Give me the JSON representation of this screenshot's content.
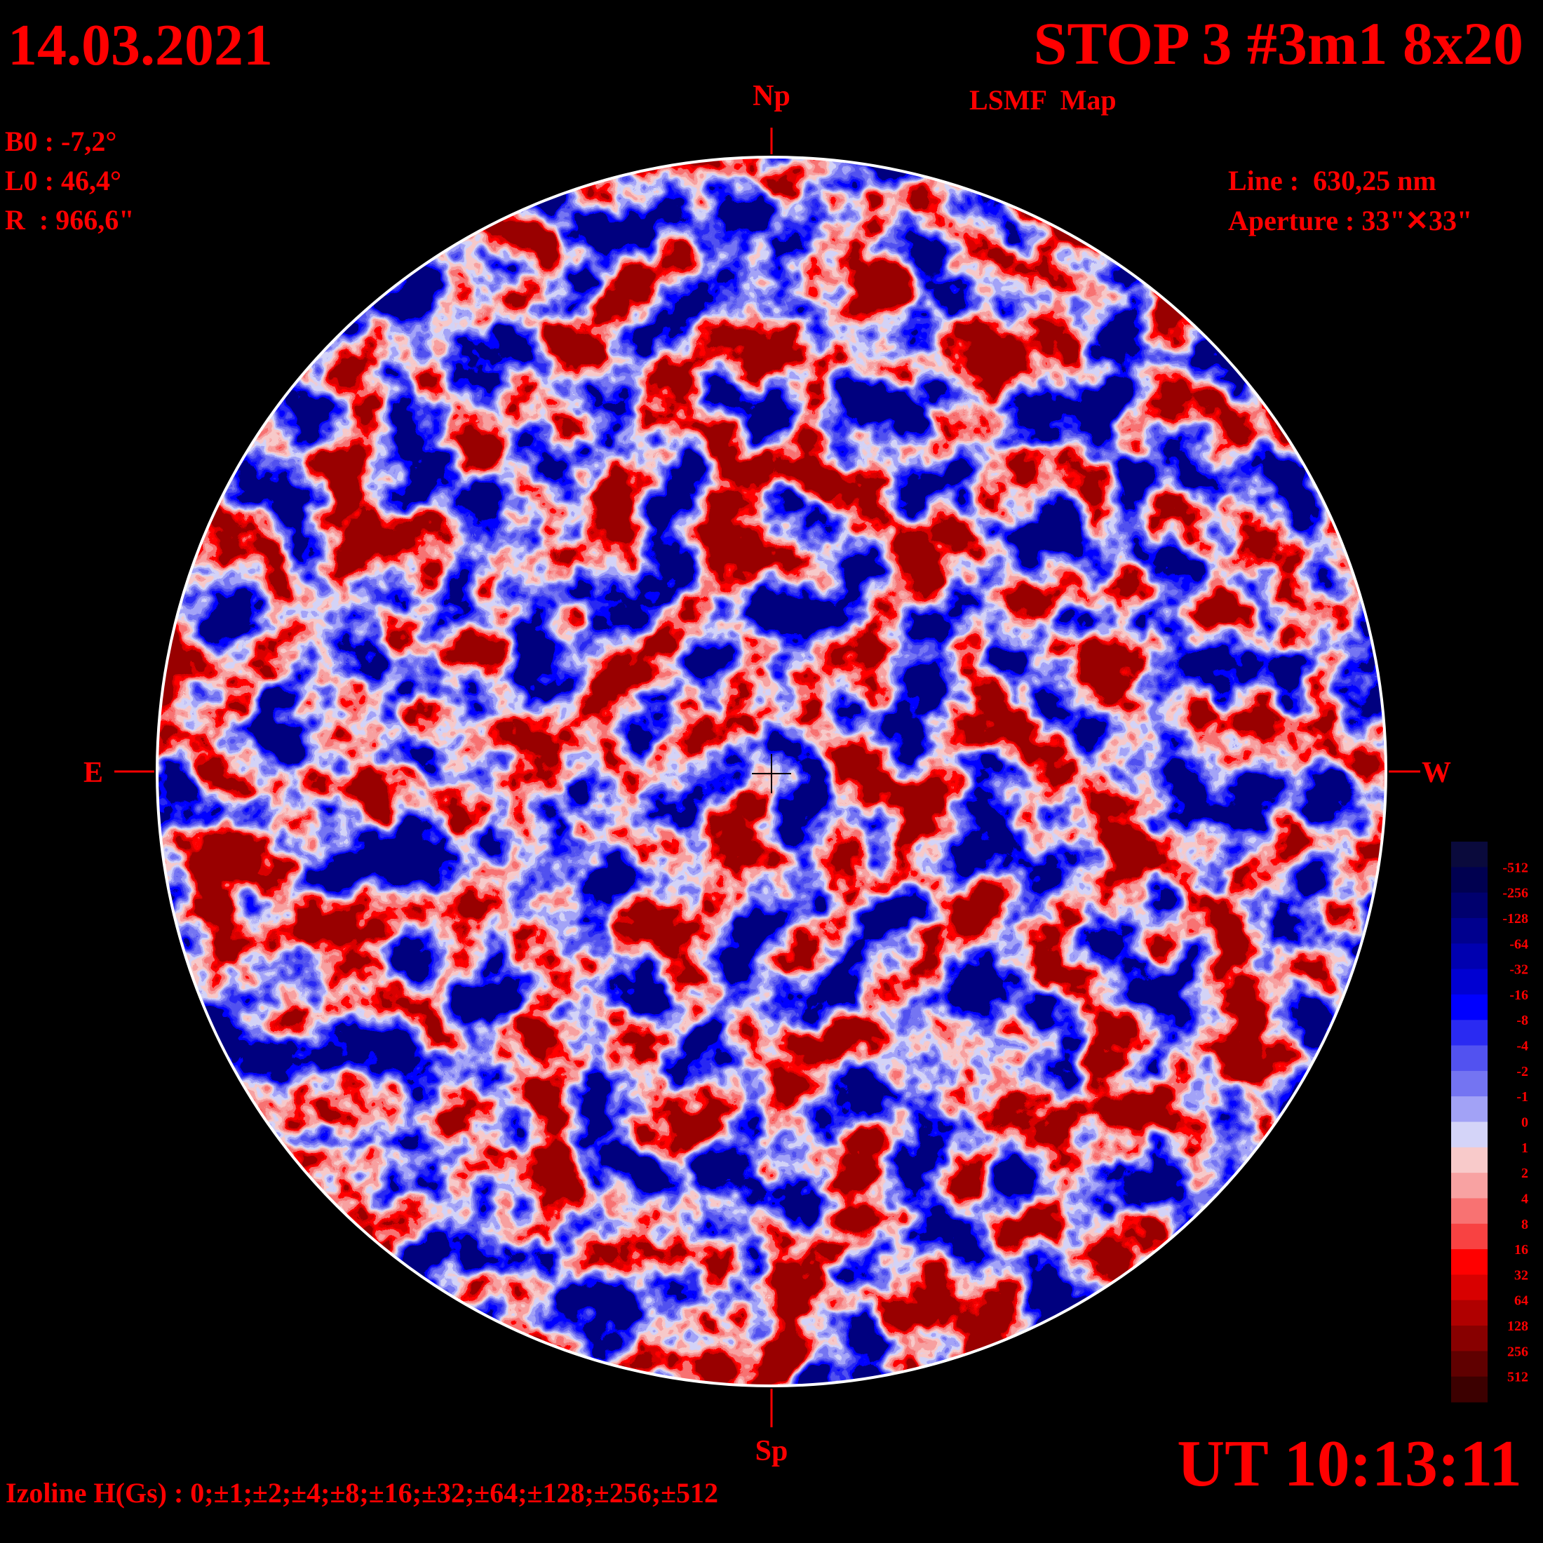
{
  "date": "14.03.2021",
  "title": "STOP 3 #3m1 8x20",
  "subtitle": "LSMF  Map",
  "params": [
    "B0 : -7,2°",
    "L0 : 46,4°",
    "R  : 966,6\""
  ],
  "instrument": [
    "Line :  630,25 nm",
    "Aperture : 33\"✕33\""
  ],
  "directions": {
    "north": "Np",
    "south": "Sp",
    "east": "E",
    "west": "W"
  },
  "colorbar": {
    "labels": [
      "-512",
      "-256",
      "-128",
      "-64",
      "-32",
      "-16",
      "-8",
      "-4",
      "-2",
      "-1",
      "0",
      "1",
      "2",
      "4",
      "8",
      "16",
      "32",
      "64",
      "128",
      "256",
      "512"
    ],
    "colors": [
      "#0a0a3c",
      "#000050",
      "#00006e",
      "#00008e",
      "#0000b0",
      "#0000d2",
      "#0000ff",
      "#2a2af2",
      "#5252f0",
      "#7474f2",
      "#a2a2f6",
      "#d4d4f8",
      "#f8caca",
      "#f8a2a2",
      "#f87272",
      "#f84242",
      "#ff0000",
      "#d80000",
      "#b00000",
      "#880000",
      "#600000",
      "#3c0000"
    ]
  },
  "izoline": "Izoline H(Gs) : 0;±1;±2;±4;±8;±16;±32;±64;±128;±256;±512",
  "time": "UT 10:13:11"
}
